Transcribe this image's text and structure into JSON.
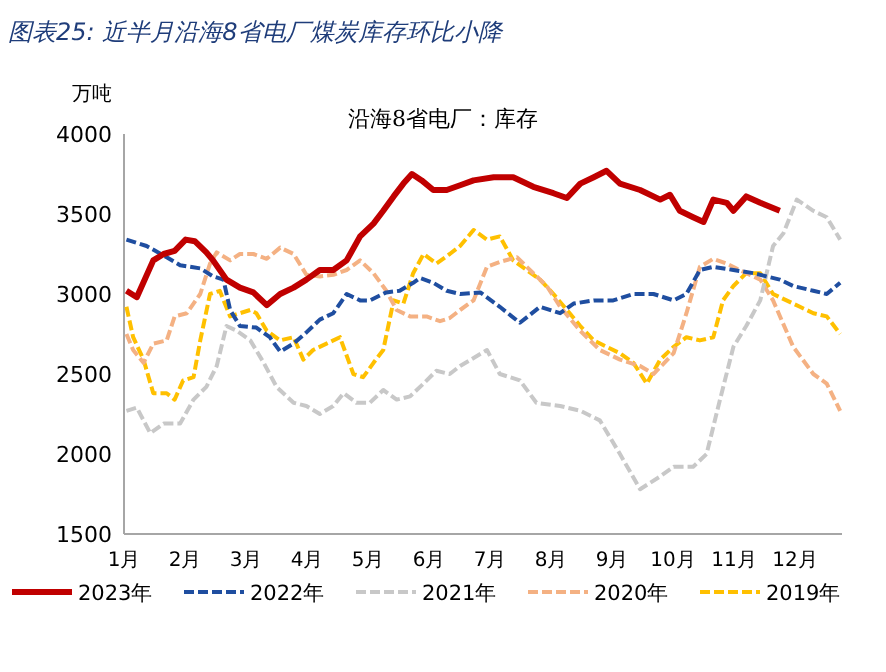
{
  "chart_data": {
    "type": "line",
    "title": "图表25: 近半月沿海8省电厂煤炭库存环比小降",
    "subtitle": "沿海8省电厂：库存",
    "ylabel": "万吨",
    "xlim": [
      1,
      12.77
    ],
    "xticks": [
      {
        "value": 1,
        "label": "1月"
      },
      {
        "value": 2,
        "label": "2月"
      },
      {
        "value": 3,
        "label": "3月"
      },
      {
        "value": 4,
        "label": "4月"
      },
      {
        "value": 5,
        "label": "5月"
      },
      {
        "value": 6,
        "label": "6月"
      },
      {
        "value": 7,
        "label": "7月"
      },
      {
        "value": 8,
        "label": "8月"
      },
      {
        "value": 9,
        "label": "9月"
      },
      {
        "value": 10,
        "label": "10月"
      },
      {
        "value": 11,
        "label": "11月"
      },
      {
        "value": 12,
        "label": "12月"
      }
    ],
    "ylim": [
      1500,
      4000
    ],
    "yticks": [
      1500,
      2000,
      2500,
      3000,
      3500,
      4000
    ],
    "grid": false,
    "legend": "bottom",
    "marker": "none",
    "series": [
      {
        "name": "2023年",
        "color": "#c00000",
        "line_style": "solid",
        "x": [
          1.04,
          1.21,
          1.48,
          1.65,
          1.83,
          2.01,
          2.16,
          2.35,
          2.46,
          2.68,
          2.9,
          3.12,
          3.34,
          3.56,
          3.78,
          3.99,
          4.21,
          4.43,
          4.65,
          4.87,
          5.09,
          5.25,
          5.42,
          5.58,
          5.72,
          5.88,
          6.07,
          6.29,
          6.51,
          6.73,
          7.06,
          7.38,
          7.71,
          8.04,
          8.26,
          8.48,
          8.7,
          8.91,
          9.13,
          9.46,
          9.79,
          9.95,
          10.11,
          10.33,
          10.5,
          10.66,
          10.88,
          10.99,
          11.2,
          11.43,
          11.75
        ],
        "values": [
          3020,
          2980,
          3210,
          3250,
          3270,
          3340,
          3330,
          3260,
          3210,
          3090,
          3040,
          3010,
          2930,
          3000,
          3040,
          3090,
          3150,
          3150,
          3210,
          3360,
          3440,
          3520,
          3610,
          3690,
          3750,
          3710,
          3650,
          3650,
          3680,
          3710,
          3730,
          3730,
          3670,
          3630,
          3600,
          3690,
          3730,
          3770,
          3690,
          3650,
          3590,
          3620,
          3520,
          3480,
          3450,
          3590,
          3570,
          3520,
          3610,
          3570,
          3520
        ]
      },
      {
        "name": "2022年",
        "color": "#1f4ea0",
        "line_style": "dashed",
        "x": [
          1.04,
          1.37,
          1.7,
          1.92,
          2.25,
          2.46,
          2.63,
          2.74,
          2.9,
          3.17,
          3.39,
          3.56,
          3.78,
          3.99,
          4.21,
          4.43,
          4.65,
          4.87,
          5.03,
          5.3,
          5.52,
          5.74,
          5.85,
          6.07,
          6.29,
          6.51,
          6.84,
          7.16,
          7.49,
          7.82,
          8.15,
          8.37,
          8.7,
          9.02,
          9.35,
          9.68,
          10.01,
          10.22,
          10.44,
          10.66,
          10.99,
          11.32,
          11.53,
          11.75,
          11.97,
          12.3,
          12.52,
          12.74
        ],
        "values": [
          3340,
          3300,
          3230,
          3180,
          3160,
          3110,
          3090,
          2900,
          2800,
          2790,
          2730,
          2640,
          2690,
          2760,
          2840,
          2880,
          3000,
          2960,
          2960,
          3010,
          3020,
          3070,
          3100,
          3070,
          3020,
          3000,
          3010,
          2920,
          2820,
          2920,
          2880,
          2940,
          2960,
          2960,
          3000,
          3000,
          2960,
          3000,
          3150,
          3170,
          3150,
          3130,
          3110,
          3090,
          3050,
          3020,
          3000,
          3070
        ]
      },
      {
        "name": "2021年",
        "color": "#c8c8c8",
        "line_style": "dashed",
        "x": [
          1.04,
          1.21,
          1.43,
          1.65,
          1.92,
          2.14,
          2.35,
          2.52,
          2.68,
          2.85,
          3.07,
          3.29,
          3.5,
          3.78,
          3.99,
          4.21,
          4.43,
          4.6,
          4.81,
          5.03,
          5.25,
          5.47,
          5.69,
          5.91,
          6.12,
          6.34,
          6.51,
          6.95,
          7.16,
          7.49,
          7.76,
          8.15,
          8.48,
          8.8,
          9.13,
          9.46,
          9.79,
          10.01,
          10.33,
          10.55,
          10.77,
          10.99,
          11.2,
          11.43,
          11.64,
          11.81,
          12.03,
          12.3,
          12.52,
          12.74
        ],
        "values": [
          2270,
          2290,
          2130,
          2190,
          2190,
          2340,
          2420,
          2550,
          2800,
          2770,
          2710,
          2570,
          2420,
          2320,
          2300,
          2250,
          2300,
          2380,
          2320,
          2320,
          2400,
          2340,
          2360,
          2440,
          2520,
          2500,
          2550,
          2650,
          2500,
          2460,
          2320,
          2300,
          2270,
          2210,
          2000,
          1780,
          1860,
          1920,
          1920,
          2000,
          2340,
          2670,
          2800,
          2960,
          3300,
          3380,
          3590,
          3520,
          3480,
          3340
        ]
      },
      {
        "name": "2020年",
        "color": "#f4b183",
        "line_style": "dashed",
        "x": [
          1.04,
          1.15,
          1.32,
          1.48,
          1.7,
          1.83,
          2.03,
          2.25,
          2.41,
          2.52,
          2.74,
          2.9,
          3.12,
          3.34,
          3.56,
          3.78,
          3.99,
          4.21,
          4.43,
          4.65,
          4.87,
          5.09,
          5.3,
          5.47,
          5.69,
          5.96,
          6.18,
          6.34,
          6.51,
          6.73,
          6.95,
          7.16,
          7.44,
          7.71,
          7.93,
          8.15,
          8.48,
          8.8,
          9.13,
          9.46,
          9.68,
          10.01,
          10.22,
          10.44,
          10.66,
          10.88,
          11.2,
          11.43,
          11.64,
          11.97,
          12.3,
          12.52,
          12.74
        ],
        "values": [
          2750,
          2650,
          2570,
          2690,
          2710,
          2860,
          2880,
          3000,
          3190,
          3260,
          3210,
          3250,
          3250,
          3220,
          3290,
          3250,
          3120,
          3110,
          3120,
          3150,
          3210,
          3130,
          3020,
          2900,
          2860,
          2860,
          2830,
          2850,
          2900,
          2960,
          3170,
          3200,
          3230,
          3130,
          3050,
          2920,
          2770,
          2650,
          2590,
          2550,
          2500,
          2630,
          2880,
          3170,
          3220,
          3190,
          3130,
          3090,
          2960,
          2670,
          2500,
          2440,
          2270
        ]
      },
      {
        "name": "2019年",
        "color": "#ffc000",
        "line_style": "dashed",
        "x": [
          1.04,
          1.15,
          1.32,
          1.48,
          1.7,
          1.83,
          1.97,
          2.14,
          2.25,
          2.41,
          2.57,
          2.74,
          2.9,
          3.07,
          3.17,
          3.34,
          3.56,
          3.78,
          3.94,
          4.1,
          4.32,
          4.54,
          4.76,
          4.92,
          5.09,
          5.25,
          5.42,
          5.58,
          5.74,
          5.91,
          6.12,
          6.34,
          6.51,
          6.73,
          6.95,
          7.16,
          7.38,
          7.6,
          7.82,
          8.04,
          8.26,
          8.48,
          8.7,
          8.91,
          9.13,
          9.35,
          9.57,
          9.79,
          10.01,
          10.22,
          10.44,
          10.66,
          10.82,
          10.99,
          11.2,
          11.43,
          11.64,
          11.86,
          12.08,
          12.3,
          12.52,
          12.74
        ],
        "values": [
          2920,
          2730,
          2590,
          2380,
          2380,
          2340,
          2460,
          2480,
          2710,
          3000,
          3020,
          2860,
          2880,
          2900,
          2880,
          2770,
          2710,
          2730,
          2590,
          2650,
          2690,
          2730,
          2500,
          2480,
          2570,
          2650,
          2960,
          2940,
          3130,
          3250,
          3190,
          3250,
          3300,
          3400,
          3340,
          3360,
          3210,
          3150,
          3090,
          3000,
          2900,
          2800,
          2710,
          2670,
          2630,
          2570,
          2440,
          2590,
          2670,
          2730,
          2710,
          2730,
          2960,
          3050,
          3130,
          3130,
          3000,
          2960,
          2920,
          2880,
          2860,
          2750
        ]
      }
    ]
  }
}
